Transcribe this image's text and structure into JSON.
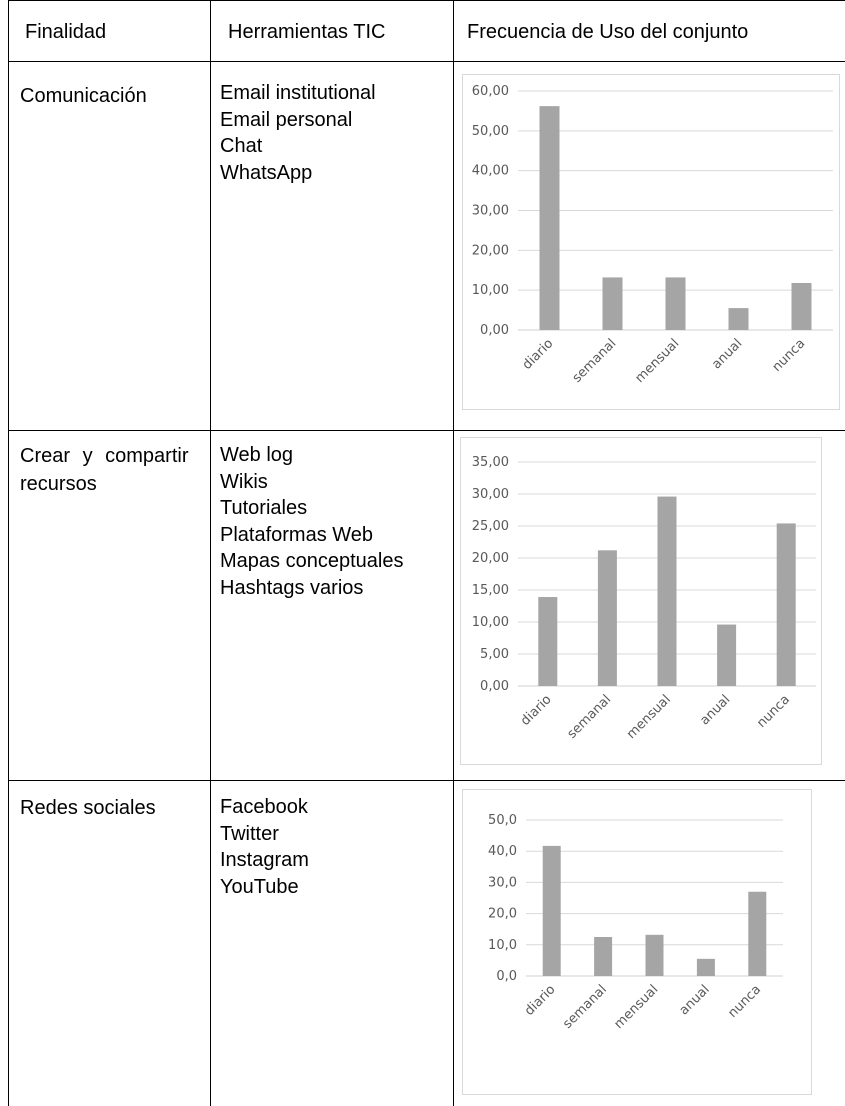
{
  "header": {
    "col1": "Finalidad",
    "col2": "Herramientas TIC",
    "col3": "Frecuencia de Uso del conjunto"
  },
  "rows": [
    {
      "purpose": "Comunicación",
      "tools": [
        "Email institutional",
        "Email personal",
        "Chat",
        "WhatsApp"
      ]
    },
    {
      "purpose_line1": "Crear y compartir",
      "purpose_line2": "recursos",
      "tools": [
        "Web log",
        "Wikis",
        "Tutoriales",
        "Plataformas Web",
        "Mapas conceptuales",
        "Hashtags varios"
      ]
    },
    {
      "purpose": "Redes sociales",
      "tools": [
        "Facebook",
        "Twitter",
        "Instagram",
        "YouTube"
      ]
    }
  ],
  "colors": {
    "bar": "#a5a5a5",
    "grid": "#d9d9d9",
    "text": "#595959"
  },
  "chart_data": [
    {
      "type": "bar",
      "categories": [
        "diario",
        "semanal",
        "mensual",
        "anual",
        "nunca"
      ],
      "values": [
        56.2,
        13.2,
        13.2,
        5.5,
        11.8
      ],
      "ylim": [
        0,
        60
      ],
      "yticks": [
        "0,00",
        "10,00",
        "20,00",
        "30,00",
        "40,00",
        "50,00",
        "60,00"
      ],
      "grid": true
    },
    {
      "type": "bar",
      "categories": [
        "diario",
        "semanal",
        "mensual",
        "anual",
        "nunca"
      ],
      "values": [
        13.9,
        21.2,
        29.6,
        9.6,
        25.4
      ],
      "ylim": [
        0,
        35
      ],
      "yticks": [
        "0,00",
        "5,00",
        "10,00",
        "15,00",
        "20,00",
        "25,00",
        "30,00",
        "35,00"
      ],
      "grid": true
    },
    {
      "type": "bar",
      "categories": [
        "diario",
        "semanal",
        "mensual",
        "anual",
        "nunca"
      ],
      "values": [
        41.7,
        12.5,
        13.2,
        5.5,
        27.0
      ],
      "ylim": [
        0,
        50
      ],
      "yticks": [
        "0,0",
        "10,0",
        "20,0",
        "30,0",
        "40,0",
        "50,0"
      ],
      "grid": true
    }
  ]
}
